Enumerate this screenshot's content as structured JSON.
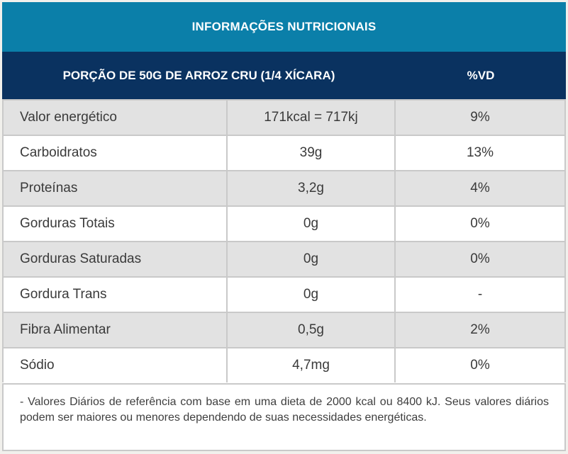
{
  "header": {
    "title": "INFORMAÇÕES NUTRICIONAIS",
    "portion_label": "PORÇÃO DE 50G DE ARROZ CRU (1/4 XÍCARA)",
    "dv_label": "%VD"
  },
  "rows": [
    {
      "nutrient": "Valor energético",
      "amount": "171kcal = 717kj",
      "dv": "9%"
    },
    {
      "nutrient": "Carboidratos",
      "amount": "39g",
      "dv": "13%"
    },
    {
      "nutrient": "Proteínas",
      "amount": "3,2g",
      "dv": "4%"
    },
    {
      "nutrient": "Gorduras Totais",
      "amount": "0g",
      "dv": "0%"
    },
    {
      "nutrient": "Gorduras Saturadas",
      "amount": "0g",
      "dv": "0%"
    },
    {
      "nutrient": "Gordura Trans",
      "amount": "0g",
      "dv": "-"
    },
    {
      "nutrient": "Fibra Alimentar",
      "amount": "0,5g",
      "dv": "2%"
    },
    {
      "nutrient": "Sódio",
      "amount": "4,7mg",
      "dv": "0%"
    }
  ],
  "footnote": "- Valores Diários de referência com base em uma dieta de 2000 kcal ou 8400 kJ. Seus valores diários podem ser maiores ou menores dependendo de suas necessidades energéticas.",
  "colors": {
    "header_top": "#0b7fa9",
    "header_sub": "#0a3260",
    "row_shade": "#e2e2e2"
  }
}
